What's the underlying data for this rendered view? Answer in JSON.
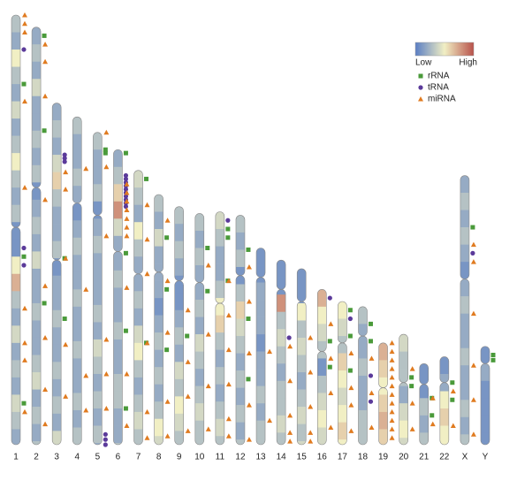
{
  "chart_data": {
    "type": "ideogram",
    "categories": [
      "1",
      "2",
      "3",
      "4",
      "5",
      "6",
      "7",
      "8",
      "9",
      "10",
      "11",
      "12",
      "13",
      "14",
      "15",
      "16",
      "17",
      "18",
      "19",
      "20",
      "21",
      "22",
      "X",
      "Y"
    ],
    "lengths": [
      249,
      242,
      198,
      190,
      181,
      171,
      159,
      145,
      138,
      134,
      135,
      133,
      114,
      107,
      102,
      90,
      83,
      80,
      59,
      64,
      47,
      51,
      156,
      57
    ],
    "centromeres": [
      123,
      93,
      91,
      50,
      48,
      59,
      60,
      45,
      43,
      40,
      53,
      35,
      17,
      17,
      19,
      36,
      24,
      17,
      26,
      28,
      12,
      15,
      60,
      10
    ],
    "bin_size": 10,
    "density": [
      [
        0.3,
        0.2,
        0.5,
        0.3,
        0.2,
        0.4,
        0.2,
        0.3,
        0.5,
        0.3,
        0.2,
        0.3,
        0.1,
        0.1,
        0.5,
        0.7,
        0.3,
        0.2,
        0.4,
        0.2,
        0.3,
        0.2,
        0.4,
        0.3,
        0.2
      ],
      [
        0.2,
        0.3,
        0.2,
        0.4,
        0.2,
        0.2,
        0.3,
        0.2,
        0.3,
        0.1,
        0.2,
        0.3,
        0.2,
        0.4,
        0.2,
        0.2,
        0.3,
        0.2,
        0.2,
        0.3,
        0.4,
        0.2,
        0.3,
        0.2,
        0.3
      ],
      [
        0.2,
        0.3,
        0.2,
        0.4,
        0.6,
        0.3,
        0.2,
        0.2,
        0.3,
        0.1,
        0.2,
        0.2,
        0.3,
        0.2,
        0.2,
        0.3,
        0.2,
        0.3,
        0.2,
        0.4
      ],
      [
        0.3,
        0.2,
        0.2,
        0.3,
        0.2,
        0.1,
        0.2,
        0.3,
        0.2,
        0.2,
        0.3,
        0.2,
        0.2,
        0.3,
        0.2,
        0.2,
        0.3,
        0.2,
        0.3
      ],
      [
        0.3,
        0.2,
        0.2,
        0.3,
        0.1,
        0.2,
        0.3,
        0.2,
        0.2,
        0.2,
        0.3,
        0.2,
        0.4,
        0.3,
        0.2,
        0.3,
        0.2,
        0.3,
        0.2
      ],
      [
        0.2,
        0.3,
        0.6,
        0.8,
        0.4,
        0.2,
        0.2,
        0.3,
        0.2,
        0.2,
        0.3,
        0.2,
        0.2,
        0.3,
        0.3,
        0.2,
        0.2,
        0.3
      ],
      [
        0.4,
        0.3,
        0.2,
        0.5,
        0.3,
        0.2,
        0.2,
        0.3,
        0.2,
        0.4,
        0.5,
        0.3,
        0.2,
        0.3,
        0.4,
        0.3
      ],
      [
        0.3,
        0.2,
        0.4,
        0.2,
        0.2,
        0.2,
        0.1,
        0.2,
        0.3,
        0.2,
        0.3,
        0.2,
        0.3,
        0.5,
        0.4
      ],
      [
        0.3,
        0.2,
        0.3,
        0.2,
        0.1,
        0.1,
        0.2,
        0.3,
        0.2,
        0.4,
        0.3,
        0.5,
        0.4,
        0.3
      ],
      [
        0.3,
        0.2,
        0.3,
        0.2,
        0.2,
        0.3,
        0.2,
        0.4,
        0.3,
        0.2,
        0.3,
        0.4,
        0.3,
        0.3
      ],
      [
        0.4,
        0.3,
        0.2,
        0.2,
        0.3,
        0.5,
        0.6,
        0.3,
        0.2,
        0.3,
        0.2,
        0.3,
        0.4,
        0.3
      ],
      [
        0.3,
        0.2,
        0.3,
        0.1,
        0.3,
        0.6,
        0.4,
        0.3,
        0.2,
        0.3,
        0.2,
        0.3,
        0.2,
        0.3
      ],
      [
        0.1,
        0.1,
        0.2,
        0.2,
        0.2,
        0.1,
        0.2,
        0.2,
        0.3,
        0.2,
        0.3,
        0.3
      ],
      [
        0.1,
        0.1,
        0.8,
        0.3,
        0.4,
        0.3,
        0.2,
        0.3,
        0.3,
        0.4,
        0.3
      ],
      [
        0.1,
        0.1,
        0.5,
        0.3,
        0.4,
        0.3,
        0.2,
        0.3,
        0.4,
        0.3,
        0.4
      ],
      [
        0.7,
        0.5,
        0.4,
        0.3,
        0.1,
        0.3,
        0.4,
        0.5,
        0.4
      ],
      [
        0.5,
        0.4,
        0.3,
        0.6,
        0.5,
        0.4,
        0.5,
        0.6,
        0.5
      ],
      [
        0.3,
        0.2,
        0.2,
        0.3,
        0.2,
        0.2,
        0.3,
        0.3
      ],
      [
        0.7,
        0.6,
        0.5,
        0.6,
        0.7,
        0.6
      ],
      [
        0.4,
        0.3,
        0.3,
        0.2,
        0.4,
        0.5,
        0.4
      ],
      [
        0.1,
        0.1,
        0.3,
        0.2,
        0.3
      ],
      [
        0.1,
        0.2,
        0.5,
        0.6,
        0.5,
        0.5
      ],
      [
        0.2,
        0.3,
        0.2,
        0.3,
        0.2,
        0.1,
        0.2,
        0.3,
        0.2,
        0.2,
        0.3,
        0.2,
        0.2,
        0.3,
        0.2,
        0.3
      ],
      [
        0.1,
        0.2,
        0.1,
        0.1,
        0.1,
        0.1
      ]
    ],
    "colorbar": {
      "low": "Low",
      "high": "High",
      "colors": [
        "#5a7ec4",
        "#f1efc4",
        "#b8524b"
      ]
    },
    "series": [
      {
        "name": "rRNA",
        "color": "#4a9a3a",
        "shape": "square",
        "positions": [
          [
            40,
            140,
            225
          ],
          [
            5,
            60,
            160
          ],
          [
            90,
            125
          ],
          [],
          [
            10,
            12
          ],
          [
            2,
            60,
            105,
            150
          ],
          [
            5,
            100
          ],
          [
            25,
            55,
            90
          ],
          [
            75
          ],
          [
            20,
            45
          ],
          [
            10,
            15,
            40
          ],
          [
            20,
            60,
            95
          ],
          [],
          [],
          [],
          [
            30,
            45
          ],
          [
            5,
            20,
            40
          ],
          [
            10,
            20
          ],
          [],
          [
            25,
            30
          ],
          [
            20,
            30
          ],
          [
            15,
            25
          ],
          [
            30
          ],
          [
            5,
            8
          ]
        ]
      },
      {
        "name": "tRNA",
        "color": "#5b3a9a",
        "shape": "circle",
        "positions": [
          [
            20,
            135,
            145
          ],
          [],
          [
            30,
            32,
            34
          ],
          [],
          [
            175,
            178,
            181
          ],
          [
            15,
            17,
            19,
            21,
            23,
            25,
            27,
            29,
            31,
            33
          ],
          [],
          [],
          [],
          [],
          [
            5
          ],
          [],
          [],
          [
            45
          ],
          [],
          [
            5
          ],
          [
            10
          ],
          [
            40,
            55
          ],
          [],
          [],
          [],
          [],
          [
            45
          ],
          []
        ]
      },
      {
        "name": "miRNA",
        "color": "#e07b20",
        "shape": "triangle",
        "positions": [
          [
            0,
            5,
            10,
            50,
            100,
            170,
            190,
            200,
            230
          ],
          [
            10,
            20,
            40,
            100,
            150,
            180,
            210,
            230
          ],
          [
            40,
            50,
            90,
            140,
            170
          ],
          [
            30,
            100,
            150,
            170
          ],
          [
            0,
            20,
            60,
            120,
            140,
            160
          ],
          [
            20,
            25,
            30,
            35,
            40,
            45,
            50,
            80,
            130,
            160
          ],
          [
            20,
            40,
            60,
            100,
            140,
            155
          ],
          [
            15,
            50,
            80,
            120,
            140
          ],
          [
            60,
            90,
            110,
            130
          ],
          [
            30,
            70,
            100,
            125
          ],
          [
            40,
            60,
            80,
            100,
            120,
            130
          ],
          [
            30,
            50,
            80,
            110,
            130
          ],
          [
            60,
            100
          ],
          [
            50,
            70,
            90,
            100,
            105
          ],
          [
            40,
            60,
            80,
            95,
            100
          ],
          [
            20,
            40,
            60,
            80
          ],
          [
            30,
            50,
            60,
            75
          ],
          [
            30,
            50,
            70
          ],
          [
            0,
            5,
            10,
            15,
            20,
            25,
            30,
            35,
            40,
            45,
            50,
            55
          ],
          [
            20,
            40,
            55
          ],
          [
            20,
            35
          ],
          [
            20,
            40
          ],
          [
            40,
            50,
            80,
            110,
            130,
            150
          ],
          []
        ]
      }
    ]
  }
}
